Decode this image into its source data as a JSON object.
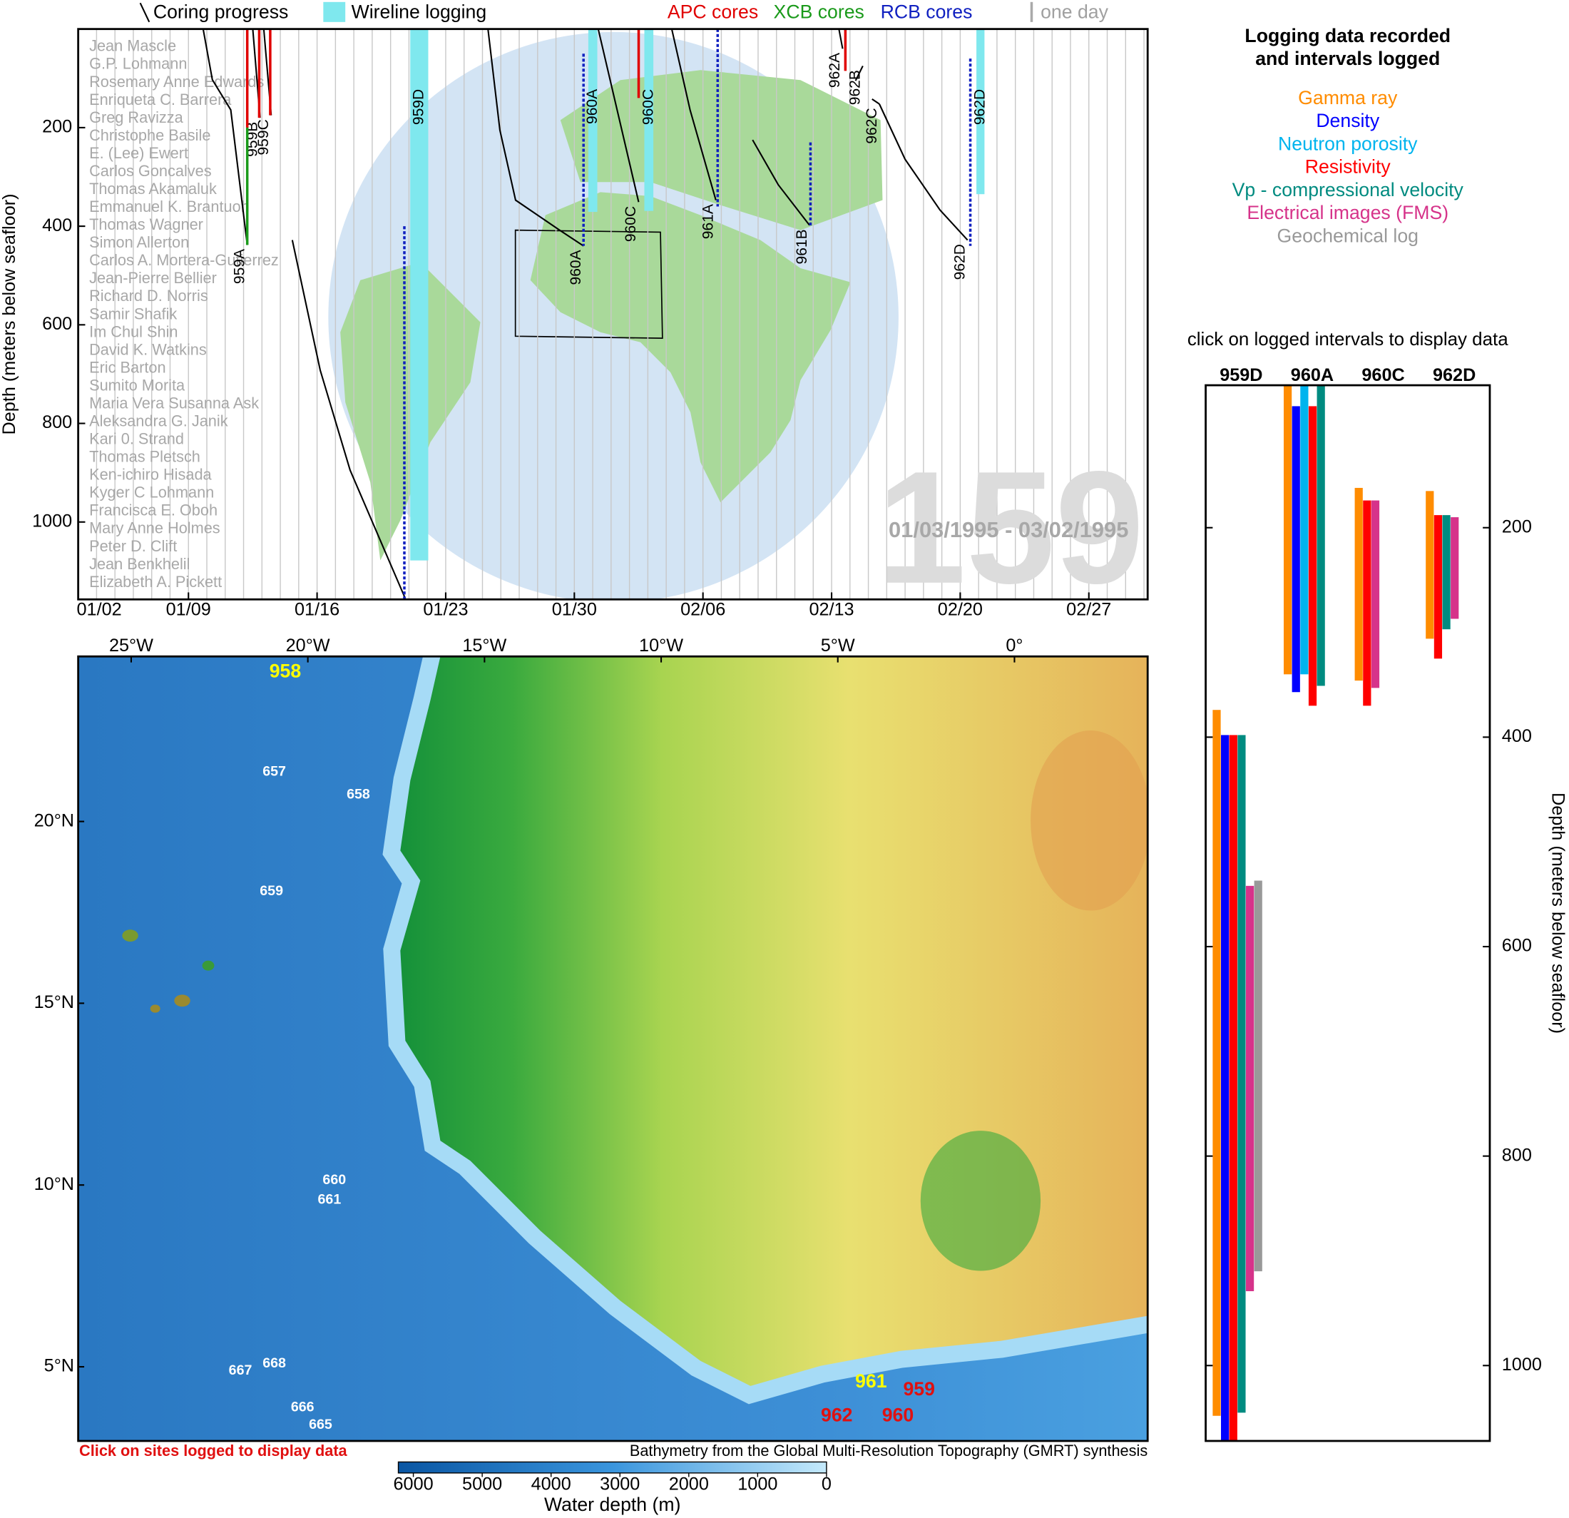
{
  "chart_data": [
    {
      "type": "timeline",
      "ylabel": "Depth (meters below seafloor)",
      "xlim": [
        3,
        61.2
      ],
      "xticks": [
        {
          "value": 2,
          "label": "01/02"
        },
        {
          "value": 9,
          "label": "01/09"
        },
        {
          "value": 16,
          "label": "01/16"
        },
        {
          "value": 23,
          "label": "01/23"
        },
        {
          "value": 30,
          "label": "01/30"
        },
        {
          "value": 37,
          "label": "02/06"
        },
        {
          "value": 44,
          "label": "02/13"
        },
        {
          "value": 51,
          "label": "02/20"
        },
        {
          "value": 58,
          "label": "02/27"
        }
      ],
      "ylim": [
        0,
        1157
      ],
      "yticks": [
        200,
        400,
        600,
        800,
        1000
      ],
      "y_inverted": true,
      "grid": "daily",
      "one_day_label": "one day",
      "watermark": "159",
      "date_range": "01/03/1995 - 03/02/1995",
      "series": [
        {
          "name": "Coring progress",
          "color": "#000000",
          "holes": [
            {
              "label": "959A",
              "x": [
                9.8,
                10.3,
                11.3,
                12.2
              ],
              "values": [
                0,
                103,
                164,
                438
              ]
            },
            {
              "label": "959B",
              "x": [
                12.5,
                12.9
              ],
              "values": [
                0,
                180
              ]
            },
            {
              "label": "959C",
              "x": [
                13.1,
                13.5
              ],
              "values": [
                0,
                175
              ]
            },
            {
              "label": "959D",
              "x": [
                14.65,
                16.17,
                17.8,
                20.8
              ],
              "values": [
                428,
                692,
                895,
                1155
              ]
            },
            {
              "label": "960A",
              "x": [
                25.3,
                25.95,
                26.8,
                29.2,
                30.5
              ],
              "values": [
                0,
                205,
                347,
                408,
                440
              ]
            },
            {
              "label": "960C",
              "x": [
                31.3,
                33.5
              ],
              "values": [
                0,
                351
              ]
            },
            {
              "label": "961A",
              "x": [
                35.3,
                36.3,
                37.7
              ],
              "values": [
                0,
                164,
                347
              ]
            },
            {
              "label": "961B",
              "x": [
                39.7,
                41.1,
                42.8
              ],
              "values": [
                225,
                316,
                398
              ]
            },
            {
              "label": "962A",
              "x": [
                44.4,
                44.6
              ],
              "values": [
                0,
                40
              ]
            },
            {
              "label": "962B",
              "x": [
                45.3,
                45.7
              ],
              "values": [
                105,
                75
              ]
            },
            {
              "label": "962C",
              "x": [
                46.2,
                46.6
              ],
              "values": [
                142,
                152
              ]
            },
            {
              "label": "962D",
              "x": [
                46.6,
                48.0,
                49.9,
                51.4
              ],
              "values": [
                152,
                264,
                367,
                428
              ]
            }
          ]
        },
        {
          "name": "Wireline logging",
          "color": "#7fe8ee",
          "bars": [
            {
              "label": "959D",
              "x": [
                21.07,
                22.05
              ],
              "values": [
                0,
                1078
              ]
            },
            {
              "label": "960A",
              "x": [
                30.76,
                31.25
              ],
              "values": [
                0,
                371
              ]
            },
            {
              "label": "960C",
              "x": [
                33.81,
                34.3
              ],
              "values": [
                0,
                369
              ]
            },
            {
              "label": "962D",
              "x": [
                51.88,
                52.32
              ],
              "values": [
                0,
                335
              ]
            }
          ]
        },
        {
          "name": "APC cores",
          "color": "#e00000",
          "segments": [
            {
              "x": 12.2,
              "values": [
                0,
                200
              ]
            },
            {
              "x": 12.85,
              "values": [
                0,
                180
              ]
            },
            {
              "x": 13.45,
              "values": [
                0,
                175
              ]
            },
            {
              "x": 33.5,
              "values": [
                0,
                140
              ]
            },
            {
              "x": 44.75,
              "values": [
                0,
                85
              ]
            }
          ]
        },
        {
          "name": "XCB cores",
          "color": "#1a9a1a",
          "segments": [
            {
              "x": 12.2,
              "values": [
                200,
                438
              ]
            }
          ]
        },
        {
          "name": "RCB cores",
          "color": "#1020c0",
          "dashed": true,
          "segments": [
            {
              "x": 20.75,
              "values": [
                400,
                1157
              ]
            },
            {
              "x": 30.5,
              "values": [
                50,
                440
              ]
            },
            {
              "x": 37.8,
              "values": [
                0,
                360
              ]
            },
            {
              "x": 42.85,
              "values": [
                230,
                400
              ]
            },
            {
              "x": 51.55,
              "values": [
                60,
                440
              ]
            }
          ]
        }
      ],
      "scientists": [
        "Jean Mascle",
        "G.P. Lohmann",
        "Rosemary Anne Edwards",
        "Enriqueta C. Barrera",
        "Greg Ravizza",
        "Christophe Basile",
        "E. (Lee) Ewert",
        "Carlos Goncalves",
        "Thomas Akamaluk",
        "Emmanuel K. Brantuoh",
        "Thomas Wagner",
        "Simon Allerton",
        "Carlos A. Mortera-Gutierrez",
        "Jean-Pierre Bellier",
        "Richard D. Norris",
        "Samir Shafik",
        "Im Chul Shin",
        "David K. Watkins",
        "Eric Barton",
        "Sumito Morita",
        "Maria Vera Susanna Ask",
        "Aleksandra G. Janik",
        "Kari 0. Strand",
        "Thomas Pletsch",
        "Ken-ichiro Hisada",
        "Kyger C Lohmann",
        "Francisca E. Oboh",
        "Mary Anne Holmes",
        "Peter D. Clift",
        "Jean Benkhelil",
        "Elizabeth A. Pickett"
      ]
    },
    {
      "type": "range-bar",
      "title": [
        "Logging data recorded",
        "and intervals logged"
      ],
      "subtitle": "click on logged intervals to display data",
      "ylabel": "Depth (meters below seafloor)",
      "categories": [
        "959D",
        "960A",
        "960C",
        "962D"
      ],
      "ylim": [
        64,
        1072
      ],
      "yticks": [
        200,
        400,
        600,
        800,
        1000
      ],
      "y_inverted": true,
      "series": [
        {
          "name": "Gamma ray",
          "color": "#ff8c00",
          "values": [
            [
              374,
              1048
            ],
            [
              64,
              340
            ],
            [
              162,
              346
            ],
            [
              165,
              306
            ]
          ]
        },
        {
          "name": "Density",
          "color": "#0000ff",
          "values": [
            [
              398,
              1072
            ],
            [
              84,
              357
            ],
            null,
            null
          ]
        },
        {
          "name": "Neutron porosity",
          "color": "#00b4ee",
          "values": [
            null,
            [
              64,
              340
            ],
            null,
            null
          ]
        },
        {
          "name": "Resistivity",
          "color": "#ff0000",
          "values": [
            [
              398,
              1072
            ],
            [
              84,
              370
            ],
            [
              174,
              370
            ],
            [
              188,
              325
            ]
          ]
        },
        {
          "name": "Vp - compressional velocity",
          "color": "#008b80",
          "values": [
            [
              398,
              1045
            ],
            [
              64,
              351
            ],
            null,
            [
              188,
              297
            ]
          ]
        },
        {
          "name": "Electrical images (FMS)",
          "color": "#d6338a",
          "values": [
            [
              542,
              929
            ],
            null,
            [
              174,
              353
            ],
            [
              190,
              287
            ]
          ]
        },
        {
          "name": "Geochemical log",
          "color": "#999999",
          "values": [
            [
              537,
              910
            ],
            null,
            null,
            null
          ]
        }
      ]
    }
  ],
  "map": {
    "lonlim": [
      -26.5,
      3.77
    ],
    "latlim": [
      2.96,
      24.54
    ],
    "lon_ticks": [
      {
        "value": -25,
        "label": "25°W"
      },
      {
        "value": -20,
        "label": "20°W"
      },
      {
        "value": -15,
        "label": "15°W"
      },
      {
        "value": -10,
        "label": "10°W"
      },
      {
        "value": -5,
        "label": "5°W"
      },
      {
        "value": 0,
        "label": "0°"
      }
    ],
    "lat_ticks": [
      {
        "value": 20,
        "label": "20°N"
      },
      {
        "value": 15,
        "label": "15°N"
      },
      {
        "value": 10,
        "label": "10°N"
      },
      {
        "value": 5,
        "label": "5°N"
      }
    ],
    "sites": [
      {
        "label": "958",
        "lon": -20.64,
        "lat": 24.1,
        "color": "#ffff00"
      },
      {
        "label": "657",
        "lon": -20.95,
        "lat": 21.36,
        "color": "#ffffff"
      },
      {
        "label": "658",
        "lon": -18.57,
        "lat": 20.73,
        "color": "#ffffff"
      },
      {
        "label": "659",
        "lon": -21.03,
        "lat": 18.07,
        "color": "#ffffff"
      },
      {
        "label": "660",
        "lon": -19.25,
        "lat": 10.13,
        "color": "#ffffff"
      },
      {
        "label": "661",
        "lon": -19.39,
        "lat": 9.59,
        "color": "#ffffff"
      },
      {
        "label": "667",
        "lon": -21.91,
        "lat": 4.89,
        "color": "#ffffff"
      },
      {
        "label": "668",
        "lon": -20.95,
        "lat": 5.08,
        "color": "#ffffff"
      },
      {
        "label": "666",
        "lon": -20.15,
        "lat": 3.88,
        "color": "#ffffff"
      },
      {
        "label": "665",
        "lon": -19.64,
        "lat": 3.4,
        "color": "#ffffff"
      },
      {
        "label": "961",
        "lon": -4.06,
        "lat": 4.57,
        "color": "#ffff00"
      },
      {
        "label": "959",
        "lon": -2.7,
        "lat": 4.35,
        "color": "#e01010"
      },
      {
        "label": "962",
        "lon": -5.03,
        "lat": 3.64,
        "color": "#e01010"
      },
      {
        "label": "960",
        "lon": -3.3,
        "lat": 3.64,
        "color": "#e01010"
      }
    ],
    "note": "Click on sites logged to display data",
    "credit": "Bathymetry from the Global Multi-Resolution Topography (GMRT) synthesis",
    "colorbar": {
      "label": "Water depth (m)",
      "lim": [
        6000,
        0
      ],
      "ticks": [
        6000,
        5000,
        4000,
        3000,
        2000,
        1000,
        0
      ]
    }
  }
}
